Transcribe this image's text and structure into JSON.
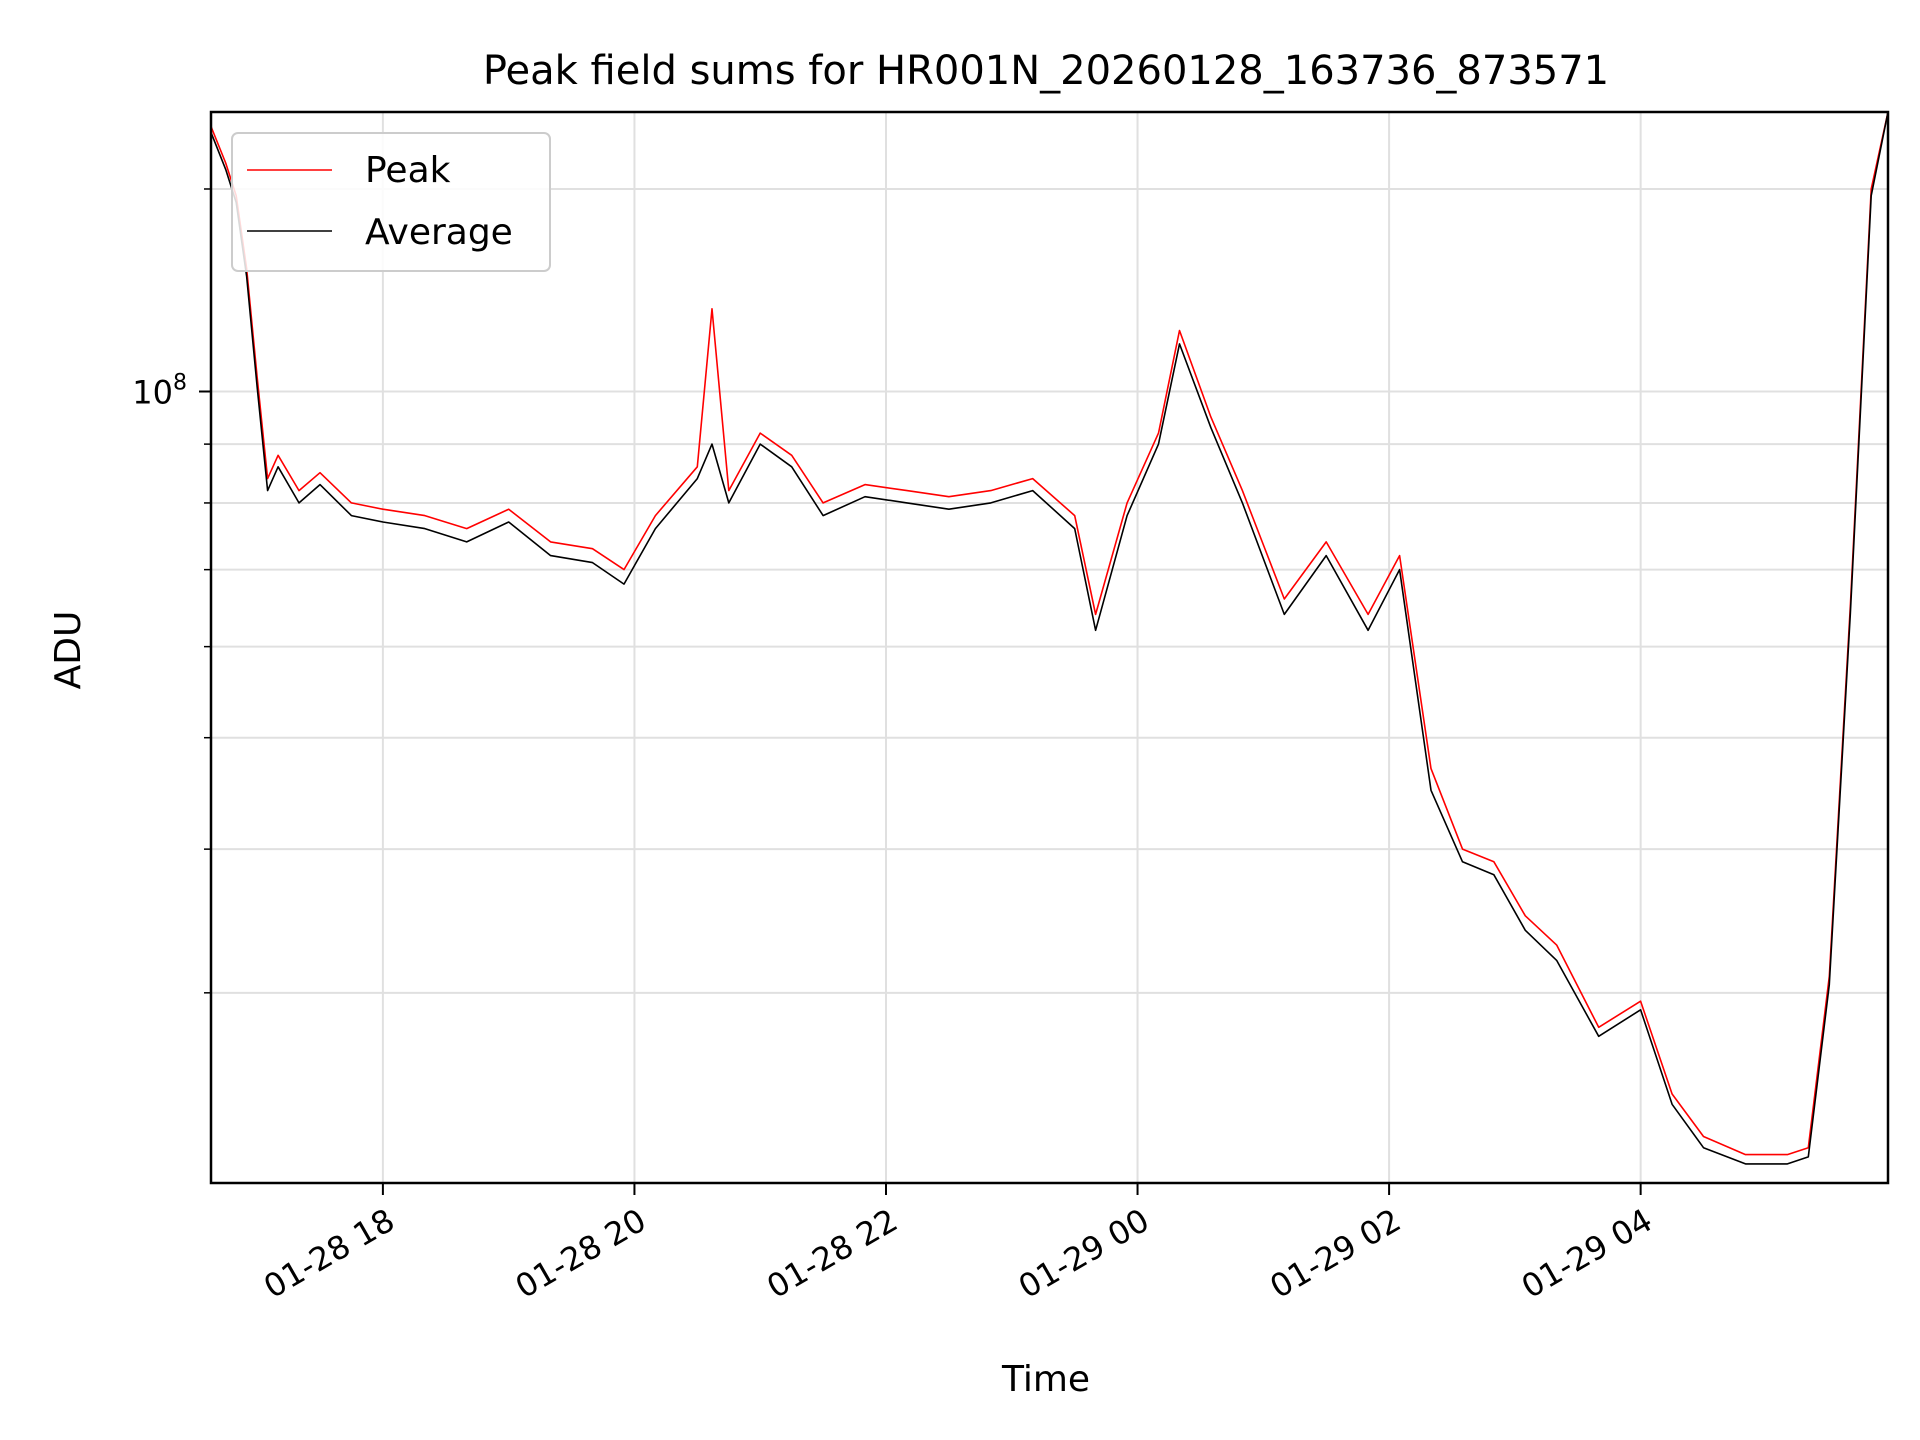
{
  "chart_data": {
    "type": "line",
    "title": "Peak field sums for HR001N_20260128_163736_873571",
    "xlabel": "Time",
    "ylabel": "ADU",
    "yscale": "log",
    "ylim": [
      20500000,
      175000000
    ],
    "xlim": [
      "01-28 16:38",
      "01-29 05:58"
    ],
    "grid": true,
    "legend_position": "top-left",
    "x_ticks": [
      "01-28 18",
      "01-28 20",
      "01-28 22",
      "01-29 00",
      "01-29 02",
      "01-29 04"
    ],
    "y_tick_labels": [
      {
        "base": "10",
        "exp": "8"
      }
    ],
    "series": [
      {
        "name": "Peak",
        "color": "#ff0000",
        "x": [
          "01-28 16:38",
          "01-28 16:45",
          "01-28 16:50",
          "01-28 16:55",
          "01-28 17:00",
          "01-28 17:05",
          "01-28 17:10",
          "01-28 17:20",
          "01-28 17:30",
          "01-28 17:45",
          "01-28 18:00",
          "01-28 18:20",
          "01-28 18:40",
          "01-28 19:00",
          "01-28 19:20",
          "01-28 19:40",
          "01-28 19:55",
          "01-28 20:10",
          "01-28 20:30",
          "01-28 20:37",
          "01-28 20:45",
          "01-28 21:00",
          "01-28 21:15",
          "01-28 21:30",
          "01-28 21:50",
          "01-28 22:10",
          "01-28 22:30",
          "01-28 22:50",
          "01-28 23:10",
          "01-28 23:30",
          "01-28 23:40",
          "01-28 23:55",
          "01-29 00:10",
          "01-29 00:20",
          "01-29 00:35",
          "01-29 00:50",
          "01-29 01:10",
          "01-29 01:30",
          "01-29 01:50",
          "01-29 02:05",
          "01-29 02:20",
          "01-29 02:35",
          "01-29 02:50",
          "01-29 03:05",
          "01-29 03:20",
          "01-29 03:40",
          "01-29 04:00",
          "01-29 04:15",
          "01-29 04:30",
          "01-29 04:50",
          "01-29 05:10",
          "01-29 05:20",
          "01-29 05:30",
          "01-29 05:40",
          "01-29 05:50",
          "01-29 05:58"
        ],
        "y": [
          170000000,
          158000000,
          148000000,
          128000000,
          103000000,
          84000000,
          88000000,
          82000000,
          85000000,
          80000000,
          79000000,
          78000000,
          76000000,
          79000000,
          74000000,
          73000000,
          70000000,
          78000000,
          86000000,
          118000000,
          82000000,
          92000000,
          88000000,
          80000000,
          83000000,
          82000000,
          81000000,
          82000000,
          84000000,
          78000000,
          64000000,
          80000000,
          92000000,
          113000000,
          95000000,
          82000000,
          66000000,
          74000000,
          64000000,
          72000000,
          47000000,
          40000000,
          39000000,
          35000000,
          33000000,
          28000000,
          29500000,
          24500000,
          22500000,
          21700000,
          21700000,
          22000000,
          31000000,
          65000000,
          150000000,
          175000000
        ]
      },
      {
        "name": "Average",
        "color": "#000000",
        "x": [
          "01-28 16:38",
          "01-28 16:45",
          "01-28 16:50",
          "01-28 16:55",
          "01-28 17:00",
          "01-28 17:05",
          "01-28 17:10",
          "01-28 17:20",
          "01-28 17:30",
          "01-28 17:45",
          "01-28 18:00",
          "01-28 18:20",
          "01-28 18:40",
          "01-28 19:00",
          "01-28 19:20",
          "01-28 19:40",
          "01-28 19:55",
          "01-28 20:10",
          "01-28 20:30",
          "01-28 20:37",
          "01-28 20:45",
          "01-28 21:00",
          "01-28 21:15",
          "01-28 21:30",
          "01-28 21:50",
          "01-28 22:10",
          "01-28 22:30",
          "01-28 22:50",
          "01-28 23:10",
          "01-28 23:30",
          "01-28 23:40",
          "01-28 23:55",
          "01-29 00:10",
          "01-29 00:20",
          "01-29 00:35",
          "01-29 00:50",
          "01-29 01:10",
          "01-29 01:30",
          "01-29 01:50",
          "01-29 02:05",
          "01-29 02:20",
          "01-29 02:35",
          "01-29 02:50",
          "01-29 03:05",
          "01-29 03:20",
          "01-29 03:40",
          "01-29 04:00",
          "01-29 04:15",
          "01-29 04:30",
          "01-29 04:50",
          "01-29 05:10",
          "01-29 05:20",
          "01-29 05:30",
          "01-29 05:40",
          "01-29 05:50",
          "01-29 05:58"
        ],
        "y": [
          168000000,
          156000000,
          146000000,
          126000000,
          101000000,
          82000000,
          86000000,
          80000000,
          83000000,
          78000000,
          77000000,
          76000000,
          74000000,
          77000000,
          72000000,
          71000000,
          68000000,
          76000000,
          84000000,
          90000000,
          80000000,
          90000000,
          86000000,
          78000000,
          81000000,
          80000000,
          79000000,
          80000000,
          82000000,
          76000000,
          62000000,
          78000000,
          90000000,
          110000000,
          93000000,
          80000000,
          64000000,
          72000000,
          62000000,
          70000000,
          45000000,
          39000000,
          38000000,
          34000000,
          32000000,
          27500000,
          29000000,
          24000000,
          22000000,
          21300000,
          21300000,
          21600000,
          30500000,
          64000000,
          148000000,
          175000000
        ]
      }
    ]
  }
}
